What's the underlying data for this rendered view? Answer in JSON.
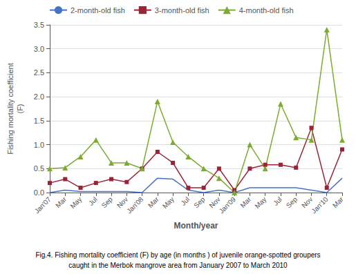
{
  "chart_data": {
    "type": "line",
    "categories": [
      "Jan'07",
      "Mar",
      "May",
      "Jul",
      "Sep",
      "Nov",
      "Jan'08",
      "Mar",
      "May",
      "Jul",
      "Sep",
      "Nov",
      "Jan'09",
      "Mar",
      "May",
      "Jul",
      "Sep",
      "Nov",
      "Jan'10",
      "Mar"
    ],
    "series": [
      {
        "name": "2-month-old fish",
        "color": "#4472c4",
        "marker": "none",
        "values": [
          0.0,
          0.05,
          0.02,
          0.02,
          0.02,
          0.02,
          0.0,
          0.3,
          0.28,
          0.05,
          0.0,
          0.05,
          0.0,
          0.1,
          0.1,
          0.1,
          0.1,
          0.05,
          0.0,
          0.3
        ]
      },
      {
        "name": "3-month-old fish",
        "color": "#9b2335",
        "marker": "square",
        "values": [
          0.2,
          0.28,
          0.1,
          0.2,
          0.28,
          0.22,
          0.5,
          0.85,
          0.62,
          0.1,
          0.1,
          0.5,
          0.05,
          0.5,
          0.58,
          0.58,
          0.52,
          1.35,
          0.1,
          0.9
        ]
      },
      {
        "name": "4-month-old fish",
        "color": "#7dab2f",
        "marker": "triangle",
        "values": [
          0.5,
          0.52,
          0.75,
          1.1,
          0.62,
          0.62,
          0.5,
          1.9,
          1.05,
          0.75,
          0.5,
          0.3,
          0.0,
          1.0,
          0.5,
          1.85,
          1.15,
          1.1,
          3.4,
          1.1
        ]
      }
    ],
    "x_label": "Month/year",
    "y_label": "Fishing mortality coefficient\n(F)",
    "ylim": [
      0,
      3.5
    ],
    "yticks": [
      {
        "value": 0,
        "label": "0.0"
      },
      0.5,
      {
        "value": 1,
        "label": "1.0"
      },
      1.5,
      {
        "value": 2,
        "label": "2.0"
      },
      2.5,
      {
        "value": 3,
        "label": "3.0"
      },
      3.5
    ],
    "grid": "y",
    "legend": "upper left",
    "annotations": [
      "Fig.4. Fishing mortality coefficient (F) by age (in months ) of juvenile orange-spotted groupers",
      "caught in the Merbok mangrove area from January 2007 to March 2010"
    ]
  }
}
